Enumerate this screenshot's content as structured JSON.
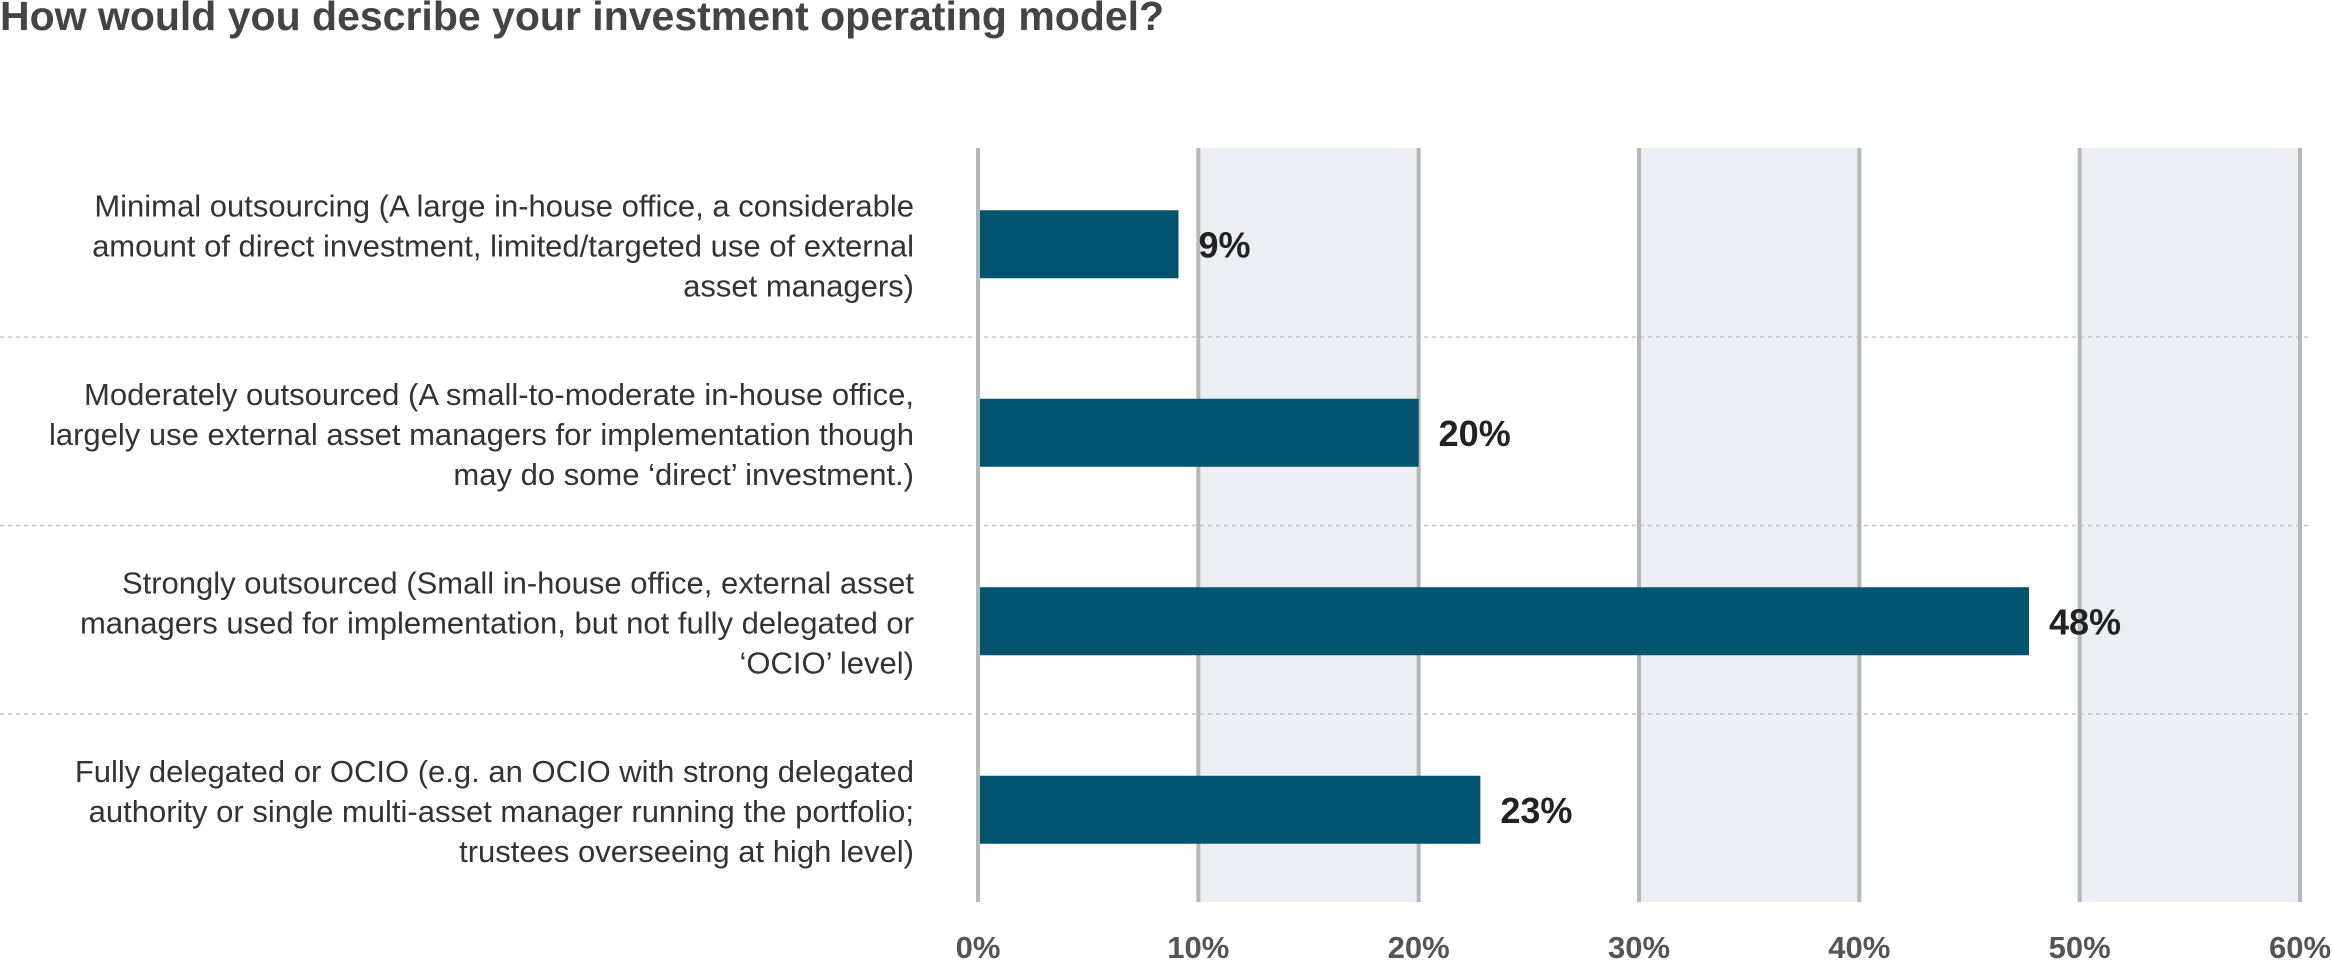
{
  "chart_data": {
    "type": "bar",
    "orientation": "horizontal",
    "title": "How would you describe your investment operating model?",
    "categories": [
      [
        "Minimal outsourcing (A large in-house office, a considerable",
        "amount of direct investment, limited/targeted use of external",
        "asset managers)"
      ],
      [
        "Moderately outsourced (A small-to-moderate in-house office,",
        "largely use external asset managers for implementation though",
        "may do some ‘direct’ investment.)"
      ],
      [
        "Strongly outsourced (Small in-house office, external asset",
        "managers used for implementation, but not fully delegated or",
        "‘OCIO’ level)"
      ],
      [
        "Fully delegated or OCIO (e.g. an OCIO with strong delegated",
        "authority or single multi-asset manager running the portfolio;",
        "trustees overseeing at high level)"
      ]
    ],
    "values": [
      9.1,
      20,
      47.7,
      22.8
    ],
    "value_labels": [
      "9%",
      "20%",
      "48%",
      "23%"
    ],
    "xlim": [
      0,
      60
    ],
    "x_ticks": [
      "0%",
      "10%",
      "20%",
      "30%",
      "40%",
      "50%",
      "60%"
    ],
    "grid": true,
    "colors": {
      "bar": "#02546e",
      "band": "#eceef3",
      "gridline": "#b3b9b8",
      "separator": "#c8c8c8"
    }
  }
}
